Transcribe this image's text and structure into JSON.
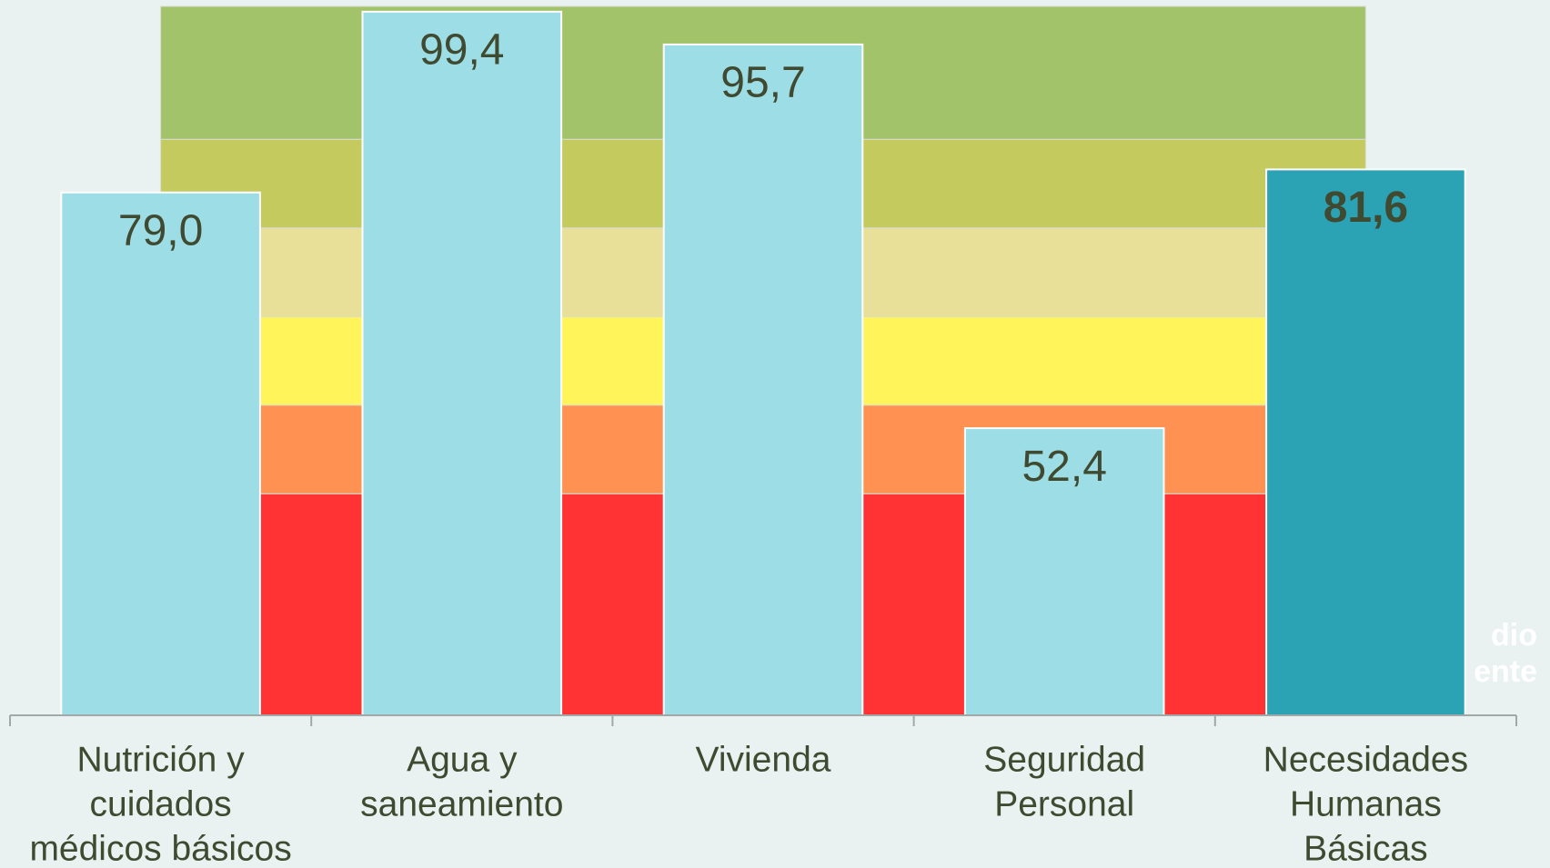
{
  "chart_data": {
    "type": "bar",
    "categories": [
      [
        "Nutrición y",
        "cuidados",
        "médicos básicos"
      ],
      [
        "Agua y",
        "saneamiento"
      ],
      [
        "Vivienda"
      ],
      [
        "Seguridad",
        "Personal"
      ],
      [
        "Necesidades",
        "Humanas",
        "Básicas"
      ]
    ],
    "values": [
      79.0,
      99.4,
      95.7,
      52.4,
      81.6
    ],
    "value_labels": [
      "79,0",
      "99,4",
      "95,7",
      "52,4",
      "81,6"
    ],
    "colors": [
      "#9ddde6",
      "#9ddde6",
      "#9ddde6",
      "#9ddde6",
      "#2ba3b5"
    ],
    "ylim": [
      20,
      100
    ],
    "bands": [
      {
        "to": 45,
        "color": "#ff3333"
      },
      {
        "to": 55,
        "color": "#ff9152"
      },
      {
        "to": 65,
        "color": "#fff55a"
      },
      {
        "to": 75,
        "color": "#e8df98"
      },
      {
        "to": 85,
        "color": "#c4ca5e"
      },
      {
        "to": 100,
        "color": "#a3c36b"
      }
    ],
    "annotations": [
      "dio",
      "ente"
    ]
  }
}
